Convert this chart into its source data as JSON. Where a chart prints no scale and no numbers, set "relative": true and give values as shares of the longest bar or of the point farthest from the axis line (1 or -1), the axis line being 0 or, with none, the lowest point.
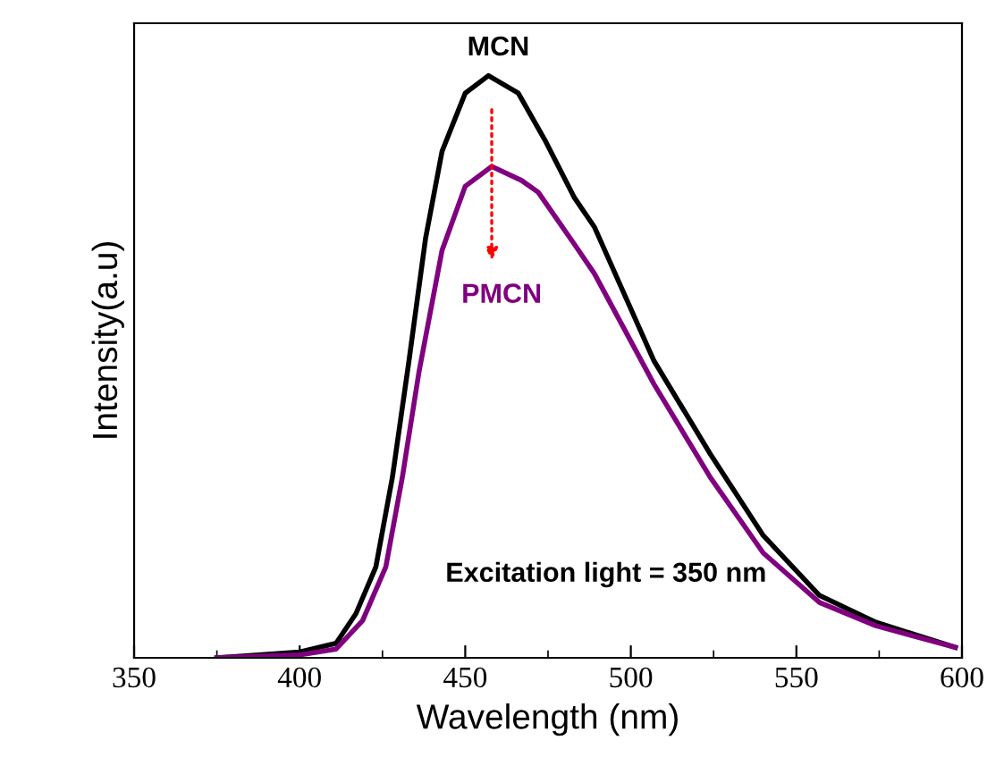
{
  "chart_data": {
    "type": "line",
    "relative": true,
    "xlabel": "Wavelength (nm)",
    "ylabel": "Intensity(a.u)",
    "xlim": [
      350,
      600
    ],
    "xticks": [
      350,
      400,
      450,
      500,
      550,
      600
    ],
    "grid": false,
    "legend": false,
    "marker": "none",
    "line_style": "solid",
    "tick_labels": "x",
    "annotations": [
      "Excitation light = 350 nm"
    ],
    "series": [
      {
        "name": "MCN",
        "color": "#000000",
        "x": [
          375,
          400,
          411,
          417,
          423,
          428,
          433,
          438,
          443,
          450,
          457,
          466,
          474,
          483,
          489,
          507,
          524,
          540,
          557,
          574,
          598
        ],
        "values": [
          0,
          0.01,
          0.025,
          0.076,
          0.156,
          0.31,
          0.51,
          0.72,
          0.87,
          0.97,
          1.0,
          0.97,
          0.89,
          0.79,
          0.74,
          0.51,
          0.35,
          0.21,
          0.107,
          0.061,
          0.018
        ]
      },
      {
        "name": "PMCN",
        "color": "#800080",
        "x": [
          375,
          400,
          411,
          419,
          426,
          431,
          436,
          443,
          450,
          458,
          467,
          472,
          483,
          489,
          507,
          524,
          540,
          557,
          574,
          598
        ],
        "values": [
          0,
          0.005,
          0.015,
          0.064,
          0.156,
          0.31,
          0.49,
          0.7,
          0.81,
          0.844,
          0.82,
          0.8,
          0.71,
          0.66,
          0.47,
          0.31,
          0.18,
          0.095,
          0.055,
          0.018
        ]
      }
    ]
  }
}
